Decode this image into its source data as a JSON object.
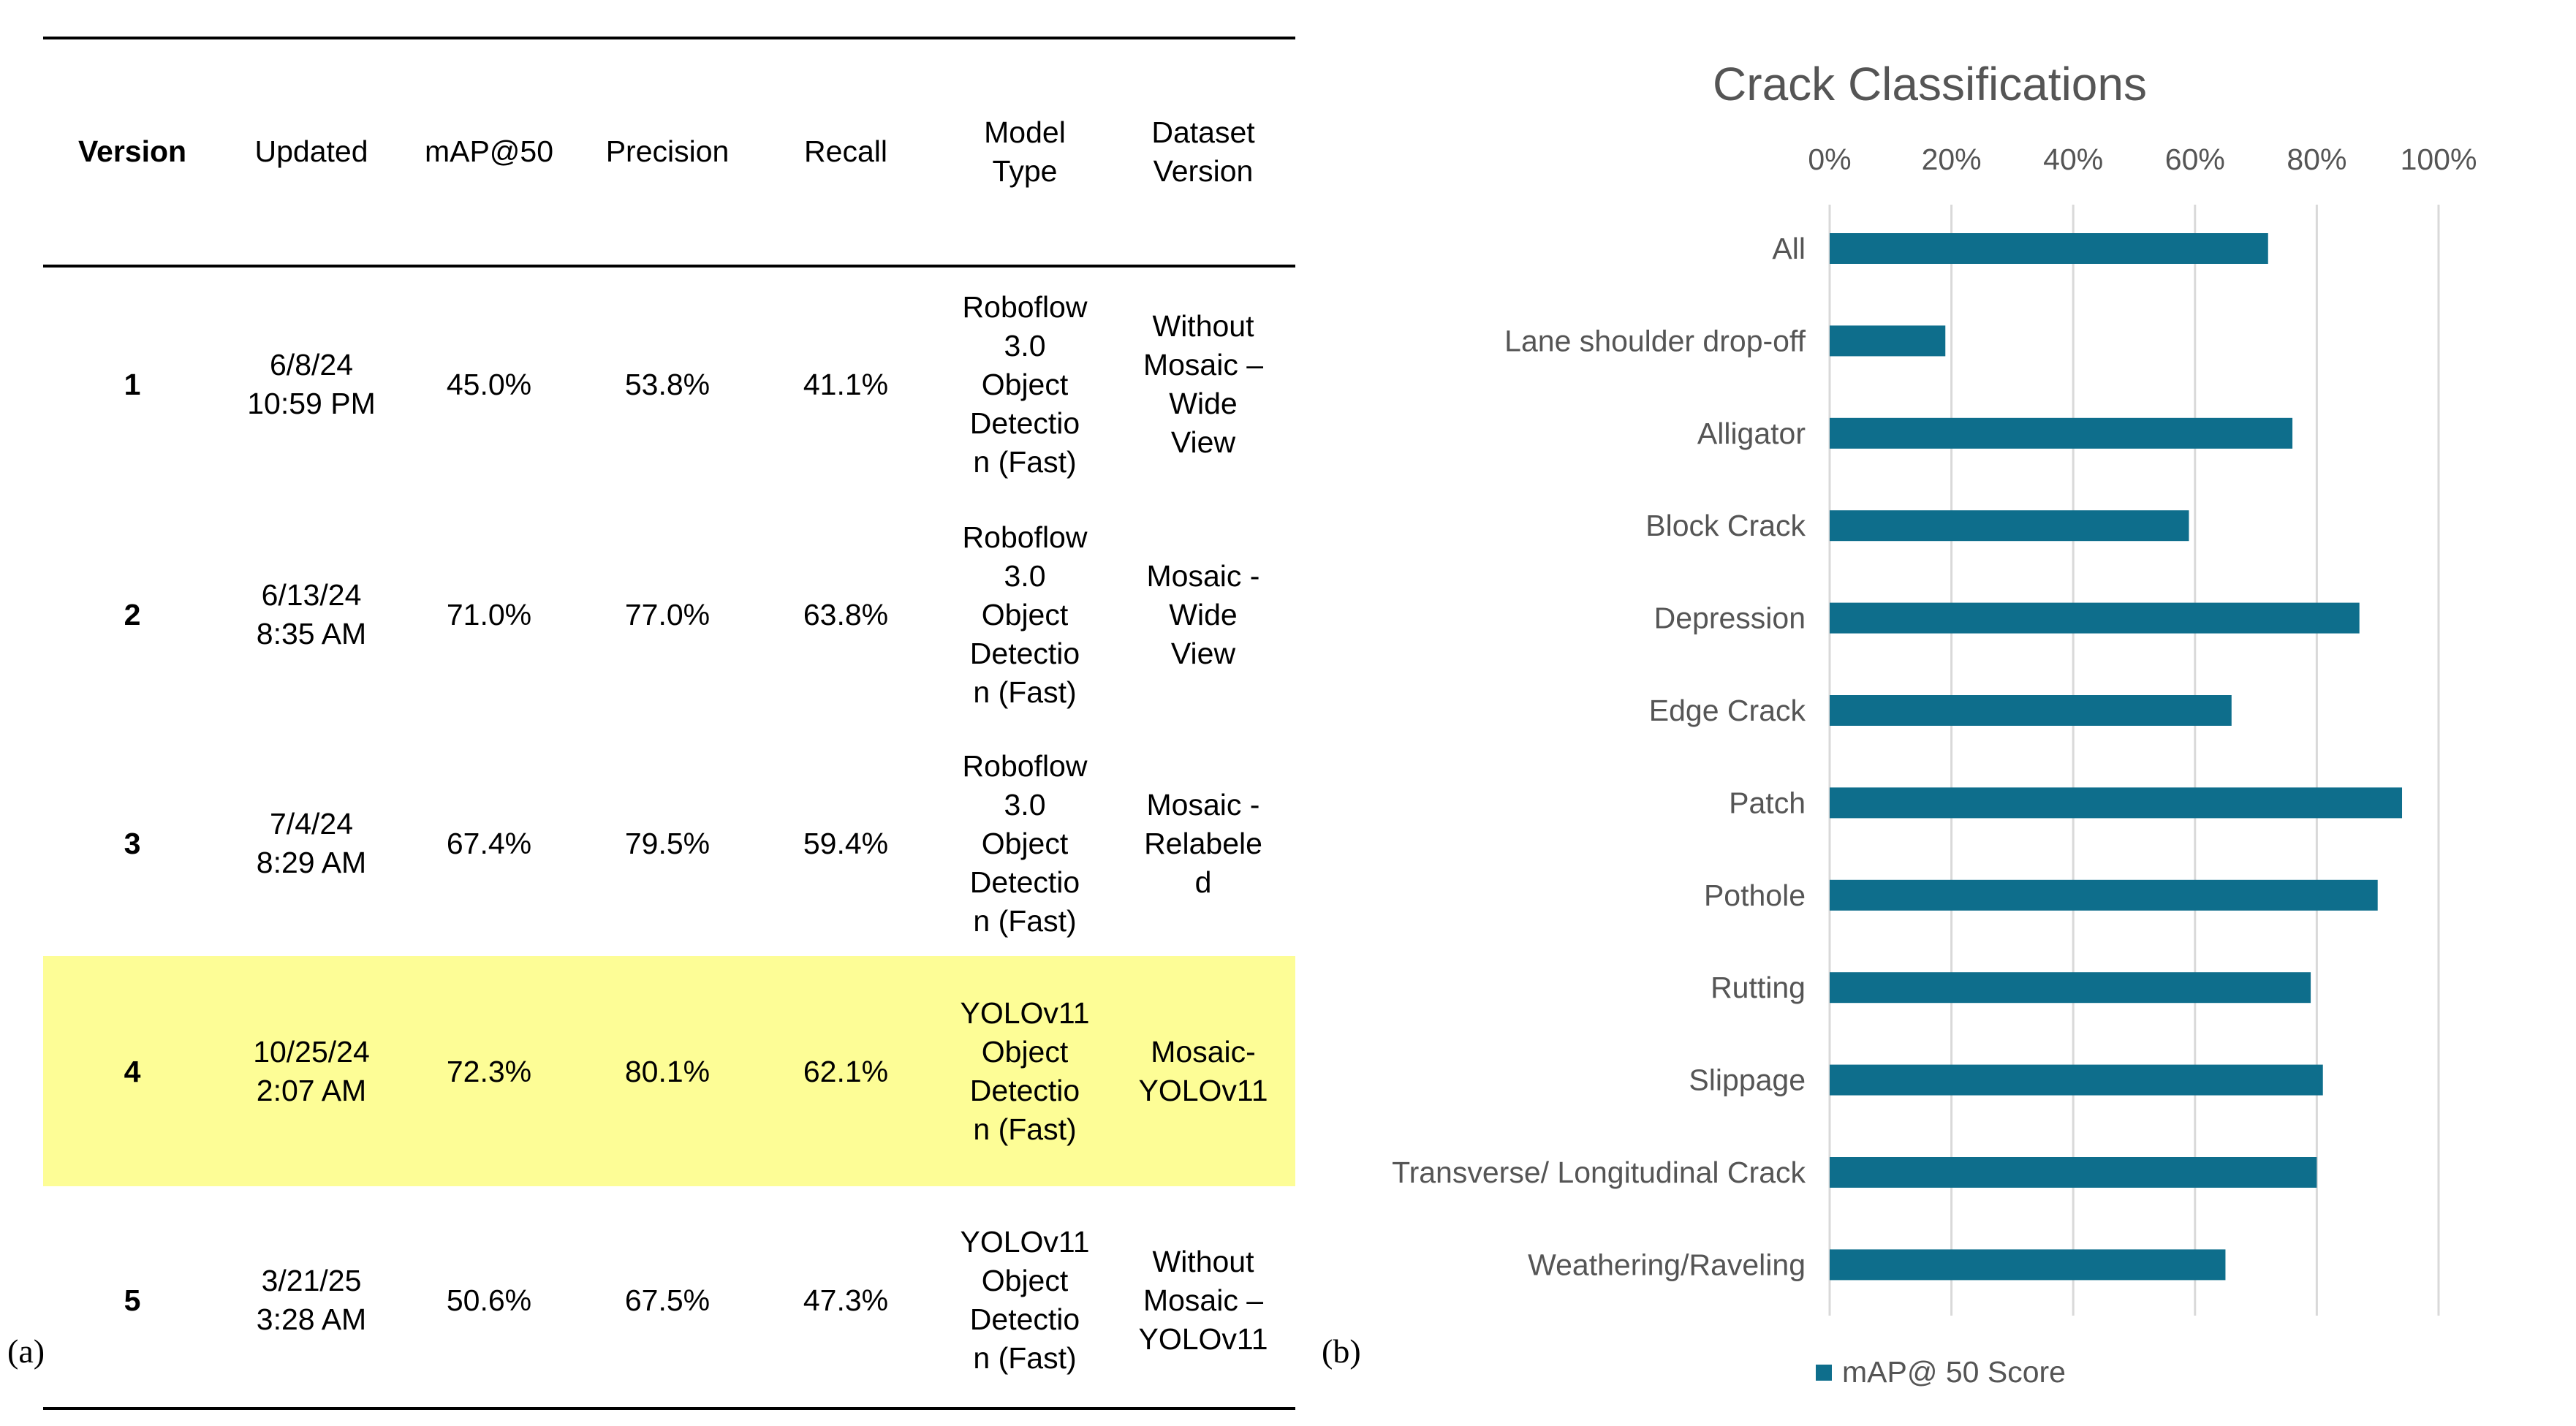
{
  "table": {
    "headers": [
      "Version",
      "Updated",
      "mAP@50",
      "Precision",
      "Recall",
      "Model\nType",
      "Dataset\nVersion"
    ],
    "rows": [
      [
        "1",
        "6/8/24\n10:59 PM",
        "45.0%",
        "53.8%",
        "41.1%",
        "Roboflow\n3.0\nObject\nDetectio\nn (Fast)",
        "Without\nMosaic –\nWide\nView"
      ],
      [
        "2",
        "6/13/24\n8:35 AM",
        "71.0%",
        "77.0%",
        "63.8%",
        "Roboflow\n3.0\nObject\nDetectio\nn (Fast)",
        "Mosaic -\nWide\nView"
      ],
      [
        "3",
        "7/4/24\n8:29 AM",
        "67.4%",
        "79.5%",
        "59.4%",
        "Roboflow\n3.0\nObject\nDetectio\nn (Fast)",
        "Mosaic -\nRelabele\nd"
      ],
      [
        "4",
        "10/25/24\n2:07 AM",
        "72.3%",
        "80.1%",
        "62.1%",
        "YOLOv11\nObject\nDetectio\nn (Fast)",
        "Mosaic-\nYOLOv11"
      ],
      [
        "5",
        "3/21/25\n3:28 AM",
        "50.6%",
        "67.5%",
        "47.3%",
        "YOLOv11\nObject\nDetectio\nn (Fast)",
        "Without\nMosaic –\nYOLOv11"
      ]
    ],
    "highlighted_row": 4,
    "highlight_color": "#fdfd96"
  },
  "panel_labels": {
    "a": "(a)",
    "b": "(b)"
  },
  "chart_data": {
    "type": "bar",
    "orientation": "horizontal",
    "title": "Crack Classifications",
    "categories": [
      "All",
      "Lane shoulder drop-off",
      "Alligator",
      "Block Crack",
      "Depression",
      "Edge Crack",
      "Patch",
      "Pothole",
      "Rutting",
      "Slippage",
      "Transverse/ Longitudinal Crack",
      "Weathering/Raveling"
    ],
    "series": [
      {
        "name": "mAP@ 50 Score",
        "values": [
          72,
          19,
          76,
          59,
          87,
          66,
          94,
          90,
          79,
          81,
          80,
          65
        ]
      }
    ],
    "xlim": [
      0,
      100
    ],
    "xticks": [
      "0%",
      "20%",
      "40%",
      "60%",
      "80%",
      "100%"
    ],
    "xtick_values": [
      0,
      20,
      40,
      60,
      80,
      100
    ],
    "xaxis_position": "top",
    "grid": true,
    "legend": "bottom",
    "bar_color": "#0e6e8c",
    "grid_color": "#d9d9d9",
    "label_color": "#555555"
  }
}
